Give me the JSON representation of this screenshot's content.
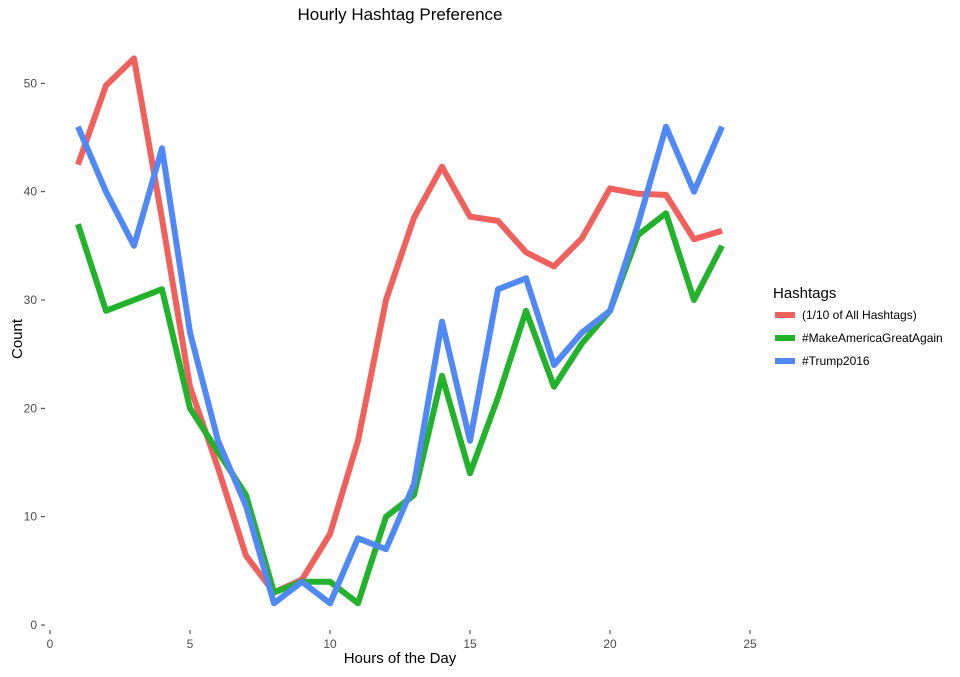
{
  "chart_data": {
    "type": "line",
    "title": "Hourly Hashtag Preference",
    "xlabel": "Hours of the Day",
    "ylabel": "Count",
    "xlim": [
      0,
      25
    ],
    "ylim": [
      0,
      54
    ],
    "xticks": [
      0,
      5,
      10,
      15,
      20,
      25
    ],
    "yticks": [
      0,
      10,
      20,
      30,
      40,
      50
    ],
    "grid": false,
    "legend": {
      "title": "Hashtags",
      "placement": "right"
    },
    "x": [
      1,
      2,
      3,
      4,
      5,
      6,
      7,
      8,
      9,
      10,
      11,
      12,
      13,
      14,
      15,
      16,
      17,
      18,
      19,
      20,
      21,
      22,
      23,
      24
    ],
    "series": [
      {
        "name": "(1/10 of All Hashtags)",
        "color": "#F0605D",
        "values": [
          42.5,
          49.8,
          52.3,
          37.5,
          22.0,
          14.5,
          6.4,
          3.0,
          4.2,
          8.4,
          17.0,
          30.0,
          37.6,
          42.3,
          37.7,
          37.3,
          34.4,
          33.1,
          35.7,
          40.3,
          39.8,
          39.7,
          35.6,
          36.4
        ]
      },
      {
        "name": "#MakeAmericaGreatAgain",
        "color": "#22B22C",
        "values": [
          37,
          29,
          30,
          31,
          20,
          16,
          12,
          3,
          4,
          4,
          2,
          10,
          12,
          23,
          14,
          21,
          29,
          22,
          26,
          29,
          36,
          38,
          30,
          35
        ]
      },
      {
        "name": "#Trump2016",
        "color": "#5088F5",
        "values": [
          46,
          40,
          35,
          44,
          27,
          17,
          11,
          2,
          4,
          2,
          8,
          7,
          13,
          28,
          17,
          31,
          32,
          24,
          27,
          29,
          37,
          46,
          40,
          46
        ]
      }
    ]
  }
}
